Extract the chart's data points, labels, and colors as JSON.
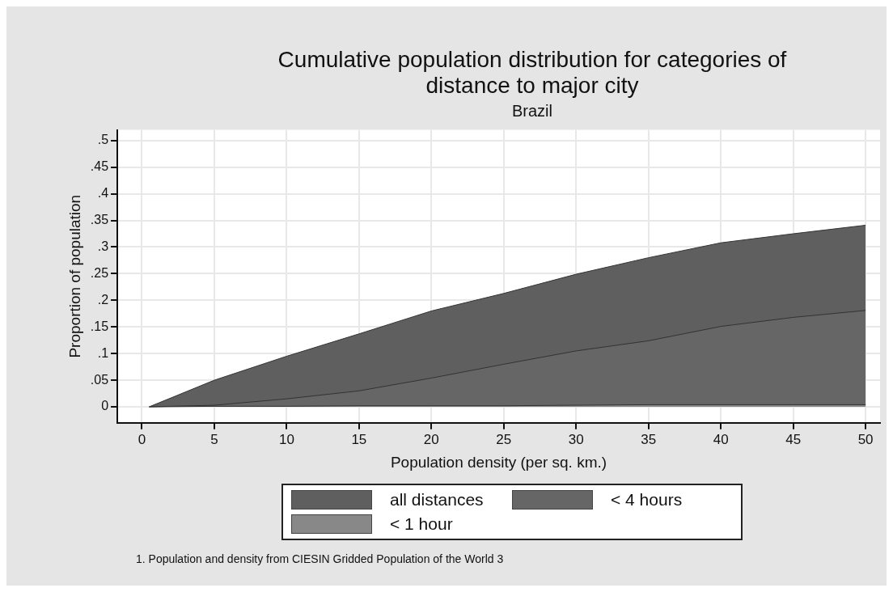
{
  "chart_data": {
    "type": "area",
    "title": "Cumulative population distribution for categories of distance to major city",
    "subtitle": "Brazil",
    "xlabel": "Population density (per sq. km.)",
    "ylabel": "Proportion of population",
    "x": [
      0.5,
      5,
      10,
      15,
      20,
      25,
      30,
      35,
      40,
      45,
      50
    ],
    "series": [
      {
        "name": "all distances",
        "color": "#5f5f5f",
        "values": [
          0,
          0.05,
          0.095,
          0.137,
          0.18,
          0.213,
          0.249,
          0.28,
          0.308,
          0.325,
          0.341
        ]
      },
      {
        "name": "< 4 hours",
        "color": "#666666",
        "values": [
          0,
          0.003,
          0.015,
          0.03,
          0.054,
          0.08,
          0.105,
          0.124,
          0.151,
          0.168,
          0.181
        ]
      },
      {
        "name": "< 1 hour",
        "color": "#888888",
        "values": [
          0,
          0.001,
          0.001,
          0.002,
          0.002,
          0.002,
          0.003,
          0.004,
          0.004,
          0.004,
          0.004
        ]
      }
    ],
    "xlim": [
      -1.7,
      51
    ],
    "xticks": [
      0,
      5,
      10,
      15,
      20,
      25,
      30,
      35,
      40,
      45,
      50
    ],
    "ylim": [
      -0.03,
      0.52
    ],
    "yticks": [
      0,
      {
        "value": 0.05,
        "label": ".05"
      },
      {
        "value": 0.1,
        "label": ".1"
      },
      {
        "value": 0.15,
        "label": ".15"
      },
      {
        "value": 0.2,
        "label": ".2"
      },
      {
        "value": 0.25,
        "label": ".25"
      },
      {
        "value": 0.3,
        "label": ".3"
      },
      {
        "value": 0.35,
        "label": ".35"
      },
      {
        "value": 0.4,
        "label": ".4"
      },
      {
        "value": 0.45,
        "label": ".45"
      },
      {
        "value": 0.5,
        "label": ".5"
      }
    ],
    "grid": true,
    "legend": "bottom",
    "annotations": [
      "1. Population and density from CIESIN Gridded Population of the World 3"
    ]
  }
}
